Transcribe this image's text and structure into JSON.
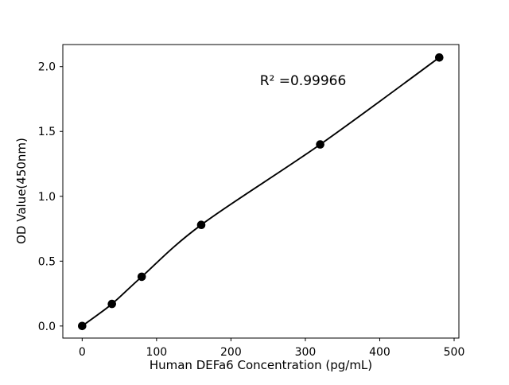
{
  "figure": {
    "background_color": "#ffffff",
    "foreground_color": "#000000"
  },
  "chart_data": {
    "type": "scatter",
    "title": "",
    "xlabel": "Human DEFa6 Concentration (pg/mL)",
    "ylabel": "OD Value(450nm)",
    "annotation": "R² =0.99966",
    "x": [
      0,
      40,
      80,
      160,
      320,
      480
    ],
    "y": [
      0.0,
      0.17,
      0.38,
      0.78,
      1.4,
      2.07
    ],
    "series": [
      {
        "name": "standard-points",
        "style": "scatter",
        "marker": "circle",
        "color": "#000000"
      },
      {
        "name": "fit-line",
        "style": "line",
        "color": "#000000"
      }
    ],
    "x_ticks": {
      "values": [
        0,
        100,
        200,
        300,
        400,
        500
      ],
      "labels": [
        "0",
        "100",
        "200",
        "300",
        "400",
        "500"
      ]
    },
    "y_ticks": {
      "values": [
        0.0,
        0.5,
        1.0,
        1.5,
        2.0
      ],
      "labels": [
        "0.0",
        "0.5",
        "1.0",
        "1.5",
        "2.0"
      ]
    },
    "xlim": [
      -26,
      506.4
    ],
    "ylim": [
      -0.093,
      2.17
    ],
    "grid": false,
    "legend": "none",
    "marker_color": "#000000",
    "line_color": "#000000"
  }
}
